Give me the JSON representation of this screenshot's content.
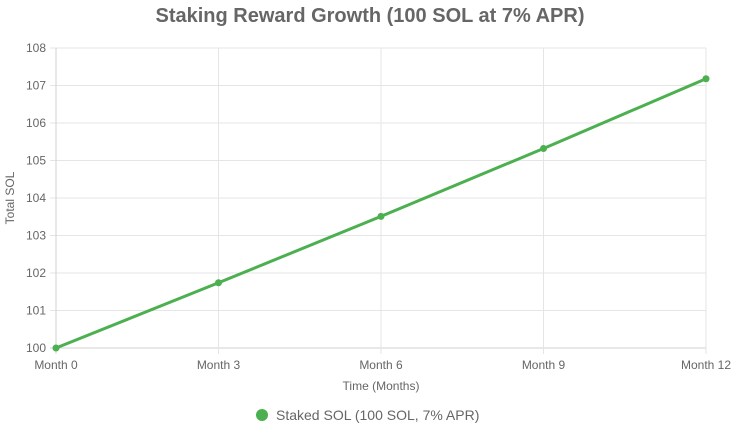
{
  "chart_data": {
    "type": "line",
    "title": "Staking Reward Growth (100 SOL at 7% APR)",
    "xlabel": "Time (Months)",
    "ylabel": "Total SOL",
    "categories": [
      "Month 0",
      "Month 3",
      "Month 6",
      "Month 9",
      "Month 12"
    ],
    "y_ticks": [
      "100",
      "101",
      "102",
      "103",
      "104",
      "105",
      "106",
      "107",
      "108"
    ],
    "ylim": [
      100,
      108
    ],
    "grid": true,
    "legend_position": "bottom",
    "series": [
      {
        "name": "Staked SOL (100 SOL, 7% APR)",
        "values": [
          100,
          101.74,
          103.51,
          105.32,
          107.18
        ],
        "color": "#4caf50"
      }
    ]
  }
}
